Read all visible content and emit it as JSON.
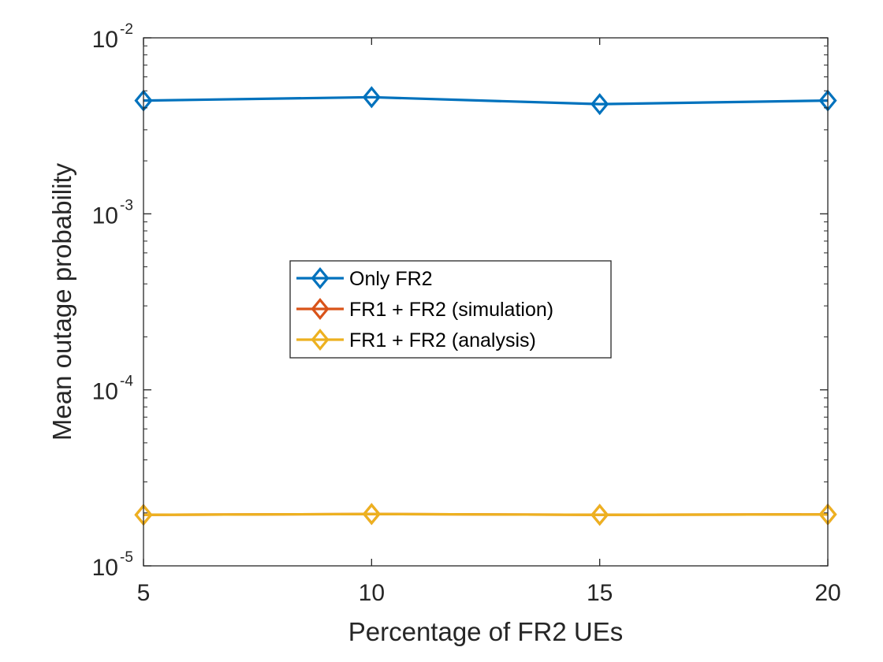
{
  "chart_data": {
    "type": "line",
    "title": "",
    "xlabel": "Percentage of FR2 UEs",
    "ylabel": "Mean outage probability",
    "x": [
      5,
      10,
      15,
      20
    ],
    "xticks": [
      "5",
      "10",
      "15",
      "20"
    ],
    "xlim": [
      5,
      20
    ],
    "yscale": "log",
    "ylim": [
      1e-05,
      0.01
    ],
    "yticks": [
      {
        "base": "10",
        "exp": "-2",
        "value": 0.01
      },
      {
        "base": "10",
        "exp": "-3",
        "value": 0.001
      },
      {
        "base": "10",
        "exp": "-4",
        "value": 0.0001
      },
      {
        "base": "10",
        "exp": "-5",
        "value": 1e-05
      }
    ],
    "grid": false,
    "legend_position": "center",
    "series": [
      {
        "name": "Only FR2",
        "color": "#0072BD",
        "marker": "diamond",
        "values": [
          0.0044,
          0.0046,
          0.0042,
          0.0044
        ]
      },
      {
        "name": "FR1 + FR2 (simulation)",
        "color": "#D95319",
        "marker": "diamond",
        "values": [
          1.95e-05,
          1.97e-05,
          1.95e-05,
          1.96e-05
        ]
      },
      {
        "name": "FR1 + FR2 (analysis)",
        "color": "#EDB120",
        "marker": "diamond",
        "values": [
          1.95e-05,
          1.97e-05,
          1.95e-05,
          1.96e-05
        ]
      }
    ]
  }
}
